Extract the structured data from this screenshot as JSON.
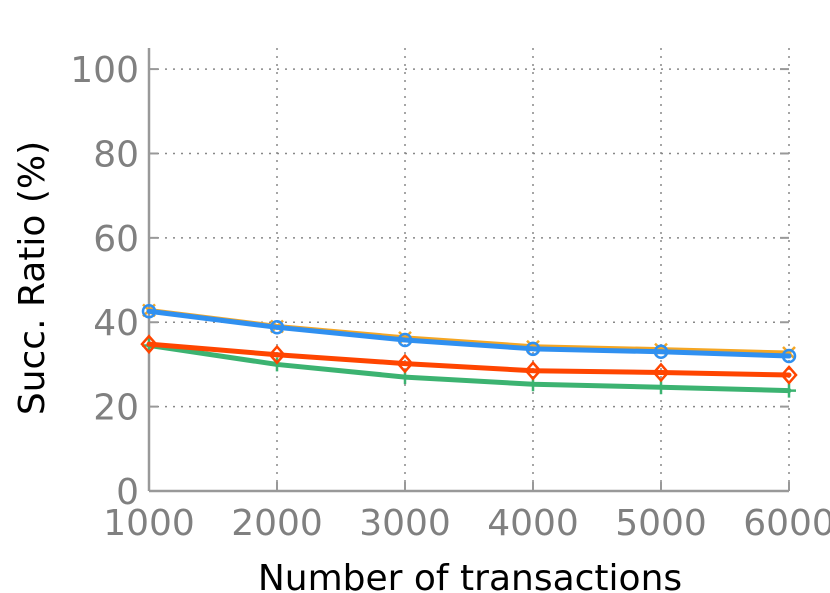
{
  "chart_data": {
    "type": "line",
    "xlabel": "Number of transactions",
    "ylabel": "Succ. Ratio (%)",
    "x": [
      1000,
      2000,
      3000,
      4000,
      5000,
      6000
    ],
    "x_ticks": [
      "1000",
      "2000",
      "3000",
      "4000",
      "5000",
      "6000"
    ],
    "y_ticks": [
      "0",
      "20",
      "40",
      "60",
      "80",
      "100"
    ],
    "xlim": [
      1000,
      6000
    ],
    "ylim": [
      0,
      105
    ],
    "grid": true,
    "series": [
      {
        "color": "#3cb371",
        "marker": "plus",
        "values": [
          34.5,
          30.0,
          27.0,
          25.3,
          24.6,
          23.8
        ]
      },
      {
        "color": "#ff4500",
        "marker": "diamond",
        "values": [
          34.8,
          32.3,
          30.2,
          28.5,
          28.1,
          27.5
        ]
      },
      {
        "color": "#f5a623",
        "marker": "x",
        "values": [
          42.8,
          39.0,
          36.3,
          34.2,
          33.5,
          32.7
        ]
      },
      {
        "color": "#3090f0",
        "marker": "circle",
        "values": [
          42.6,
          38.8,
          35.8,
          33.7,
          33.0,
          32.0
        ]
      }
    ]
  }
}
